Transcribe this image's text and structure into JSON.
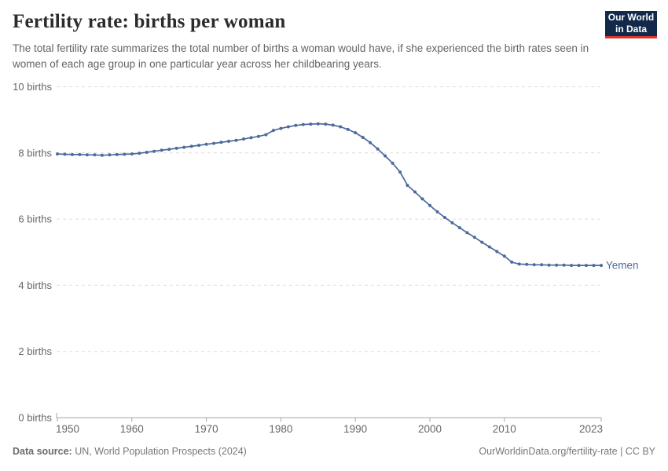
{
  "header": {
    "title": "Fertility rate: births per woman",
    "subtitle": "The total fertility rate summarizes the total number of births a woman would have, if she experienced the birth rates seen in women of each age group in one particular year across her childbearing years."
  },
  "logo": {
    "line1": "Our World",
    "line2": "in Data",
    "bg_color": "#12294B",
    "accent_color": "#DC352C"
  },
  "chart_data": {
    "type": "line",
    "title": "Fertility rate: births per woman",
    "entity": "Yemen",
    "xlabel": "",
    "ylabel": "",
    "xlim": [
      1950,
      2023
    ],
    "ylim": [
      0,
      10
    ],
    "grid": "horizontal-dashed",
    "legend_position": "end-of-line label",
    "x_ticks": [
      1950,
      1960,
      1970,
      1980,
      1990,
      2000,
      2010,
      2023
    ],
    "y_ticks": [
      {
        "v": 0,
        "label": "0 births"
      },
      {
        "v": 2,
        "label": "2 births"
      },
      {
        "v": 4,
        "label": "4 births"
      },
      {
        "v": 6,
        "label": "6 births"
      },
      {
        "v": 8,
        "label": "8 births"
      },
      {
        "v": 10,
        "label": "10 births"
      }
    ],
    "x": [
      1950,
      1951,
      1952,
      1953,
      1954,
      1955,
      1956,
      1957,
      1958,
      1959,
      1960,
      1961,
      1962,
      1963,
      1964,
      1965,
      1966,
      1967,
      1968,
      1969,
      1970,
      1971,
      1972,
      1973,
      1974,
      1975,
      1976,
      1977,
      1978,
      1979,
      1980,
      1981,
      1982,
      1983,
      1984,
      1985,
      1986,
      1987,
      1988,
      1989,
      1990,
      1991,
      1992,
      1993,
      1994,
      1995,
      1996,
      1997,
      1998,
      1999,
      2000,
      2001,
      2002,
      2003,
      2004,
      2005,
      2006,
      2007,
      2008,
      2009,
      2010,
      2011,
      2012,
      2013,
      2014,
      2015,
      2016,
      2017,
      2018,
      2019,
      2020,
      2021,
      2022,
      2023
    ],
    "series": [
      {
        "name": "Yemen",
        "color": "#4C6A9C",
        "values": [
          7.97,
          7.96,
          7.95,
          7.95,
          7.94,
          7.94,
          7.93,
          7.94,
          7.95,
          7.96,
          7.97,
          7.99,
          8.02,
          8.05,
          8.08,
          8.11,
          8.14,
          8.17,
          8.2,
          8.23,
          8.26,
          8.29,
          8.32,
          8.35,
          8.38,
          8.42,
          8.46,
          8.5,
          8.55,
          8.68,
          8.74,
          8.79,
          8.83,
          8.86,
          8.87,
          8.88,
          8.87,
          8.84,
          8.79,
          8.71,
          8.61,
          8.47,
          8.31,
          8.12,
          7.91,
          7.69,
          7.42,
          7.02,
          6.82,
          6.61,
          6.41,
          6.22,
          6.05,
          5.89,
          5.74,
          5.59,
          5.45,
          5.3,
          5.16,
          5.02,
          4.88,
          4.7,
          4.64,
          4.63,
          4.62,
          4.62,
          4.61,
          4.61,
          4.61,
          4.6,
          4.6,
          4.6,
          4.6,
          4.6
        ]
      }
    ]
  },
  "footer": {
    "source_label": "Data source:",
    "source_value": "UN, World Population Prospects (2024)",
    "link": "OurWorldinData.org/fertility-rate | CC BY"
  },
  "colors": {
    "line": "#4C6A9C",
    "grid": "#DDDDDD",
    "axis": "#A6A6A6",
    "tick_text": "#666666"
  }
}
